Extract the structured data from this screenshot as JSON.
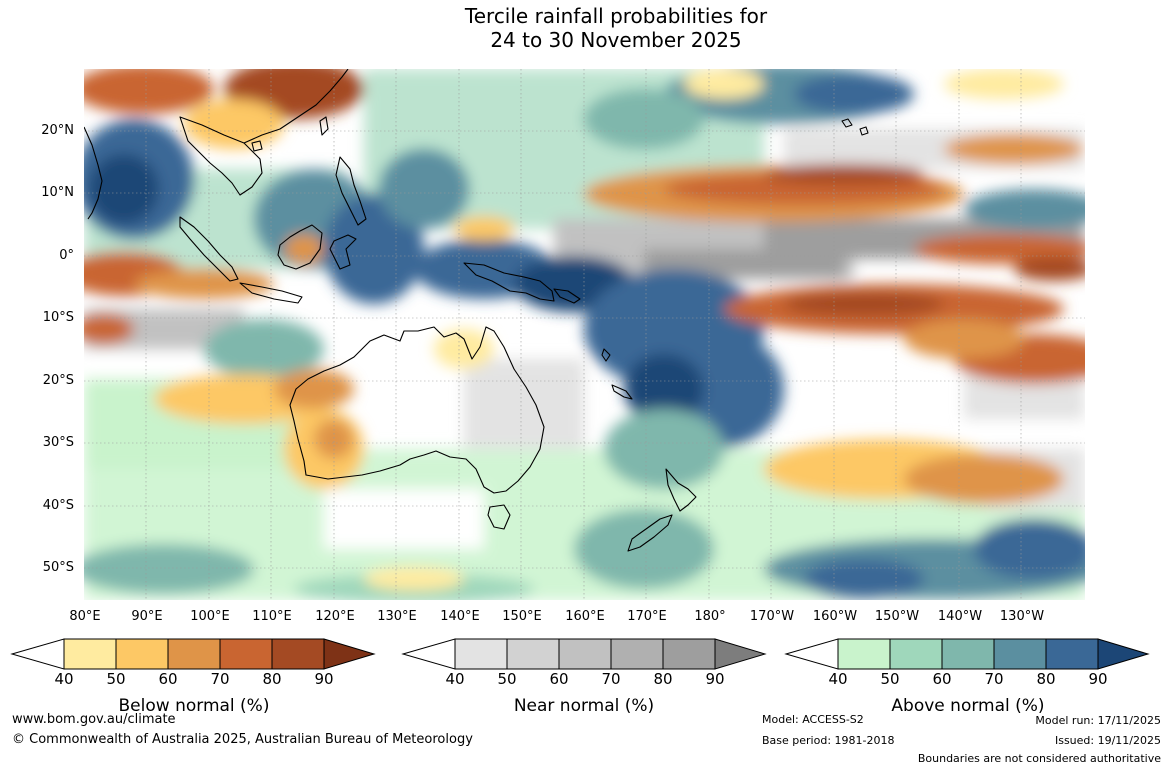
{
  "title": {
    "line1": "Tercile rainfall probabilities for",
    "line2": "24 to 30 November 2025"
  },
  "map": {
    "lat_labels": [
      "20°N",
      "10°N",
      "0°",
      "10°S",
      "20°S",
      "30°S",
      "40°S",
      "50°S"
    ],
    "lon_labels": [
      "80°E",
      "90°E",
      "100°E",
      "110°E",
      "120°E",
      "130°E",
      "140°E",
      "150°E",
      "160°E",
      "170°E",
      "180°",
      "170°W",
      "160°W",
      "150°W",
      "140°W",
      "130°W"
    ],
    "colors": {
      "below": [
        "#ffeba0",
        "#fdc865",
        "#df9448",
        "#c96531",
        "#a44a23",
        "#7e3216"
      ],
      "near": [
        "#e3e3e3",
        "#d2d2d2",
        "#c1c1c1",
        "#b0b0b0",
        "#9e9e9e",
        "#7d7d7d"
      ],
      "above": [
        "#c9f3cc",
        "#9fd7bb",
        "#7fb7ac",
        "#5b8fa0",
        "#3a6896",
        "#1c4676"
      ],
      "coast": "#000000",
      "border": "#8a8a8a",
      "grid": "#999999"
    }
  },
  "colorbars": {
    "below": {
      "title": "Below normal (%)",
      "ticks": [
        "40",
        "50",
        "60",
        "70",
        "80",
        "90"
      ]
    },
    "near": {
      "title": "Near normal (%)",
      "ticks": [
        "40",
        "50",
        "60",
        "70",
        "80",
        "90"
      ]
    },
    "above": {
      "title": "Above normal (%)",
      "ticks": [
        "40",
        "50",
        "60",
        "70",
        "80",
        "90"
      ]
    }
  },
  "footer": {
    "website": "www.bom.gov.au/climate",
    "copyright": "© Commonwealth of Australia 2025, Australian Bureau of Meteorology",
    "model": "Model: ACCESS-S2",
    "base_period": "Base period: 1981-2018",
    "model_run": "Model run: 17/11/2025",
    "issued": "Issued: 19/11/2025",
    "disclaimer": "Boundaries are not considered authoritative"
  }
}
